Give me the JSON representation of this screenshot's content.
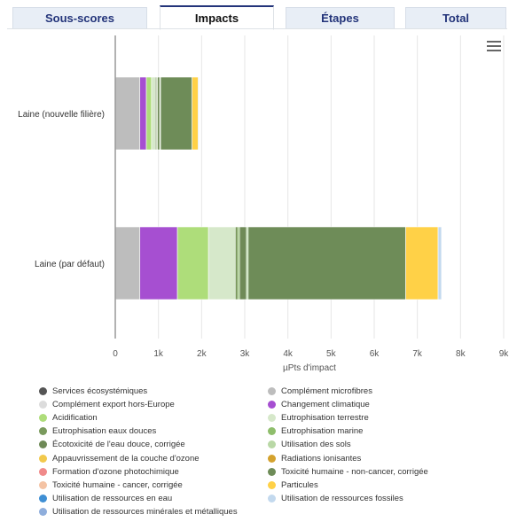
{
  "tabs": [
    {
      "label": "Sous-scores",
      "active": false
    },
    {
      "label": "Impacts",
      "active": true
    },
    {
      "label": "Étapes",
      "active": false
    },
    {
      "label": "Total",
      "active": false
    }
  ],
  "menu_icon": "hamburger-menu-icon",
  "chart_data": {
    "type": "bar",
    "orientation": "horizontal",
    "stacked": true,
    "categories": [
      "Laine (nouvelle filière)",
      "Laine (par défaut)"
    ],
    "xlabel": "µPts d'impact",
    "xlim": [
      0,
      9000
    ],
    "xticks": [
      "0",
      "1k",
      "2k",
      "3k",
      "4k",
      "5k",
      "6k",
      "7k",
      "8k",
      "9k"
    ],
    "grid": true,
    "legend_position": "bottom",
    "series": [
      {
        "name": "Services écosystémiques",
        "color": "#555555",
        "values": [
          0,
          0
        ]
      },
      {
        "name": "Complément microfibres",
        "color": "#bdbdbd",
        "values": [
          570,
          570
        ]
      },
      {
        "name": "Complément export hors-Europe",
        "color": "#dcdcdc",
        "values": [
          0,
          0
        ]
      },
      {
        "name": "Changement climatique",
        "color": "#a64fd1",
        "values": [
          150,
          870
        ]
      },
      {
        "name": "Acidification",
        "color": "#aedd7a",
        "values": [
          120,
          720
        ]
      },
      {
        "name": "Eutrophisation terrestre",
        "color": "#d6e8ca",
        "values": [
          90,
          620
        ]
      },
      {
        "name": "Eutrophisation eaux douces",
        "color": "#7a9a5d",
        "values": [
          30,
          60
        ]
      },
      {
        "name": "Eutrophisation marine",
        "color": "#8fbe6c",
        "values": [
          20,
          40
        ]
      },
      {
        "name": "Écotoxicité de l'eau douce, corrigée",
        "color": "#6f8a57",
        "values": [
          50,
          160
        ]
      },
      {
        "name": "Utilisation des sols",
        "color": "#b9d8a6",
        "values": [
          20,
          40
        ]
      },
      {
        "name": "Appauvrissement de la couche d'ozone",
        "color": "#f2c94c",
        "values": [
          0,
          0
        ]
      },
      {
        "name": "Radiations ionisantes",
        "color": "#d4a22e",
        "values": [
          0,
          0
        ]
      },
      {
        "name": "Formation d'ozone photochimique",
        "color": "#f08a8a",
        "values": [
          0,
          0
        ]
      },
      {
        "name": "Toxicité humaine - non-cancer, corrigée",
        "color": "#6e8c58",
        "values": [
          730,
          3650
        ]
      },
      {
        "name": "Toxicité humaine - cancer, corrigée",
        "color": "#f4c3a4",
        "values": [
          0,
          0
        ]
      },
      {
        "name": "Particules",
        "color": "#ffd147",
        "values": [
          140,
          750
        ]
      },
      {
        "name": "Utilisation de ressources en eau",
        "color": "#3f8fd4",
        "values": [
          0,
          0
        ]
      },
      {
        "name": "Utilisation de ressources fossiles",
        "color": "#c3d9ee",
        "values": [
          20,
          80
        ]
      },
      {
        "name": "Utilisation de ressources minérales et métalliques",
        "color": "#8faedc",
        "values": [
          0,
          0
        ]
      }
    ]
  }
}
